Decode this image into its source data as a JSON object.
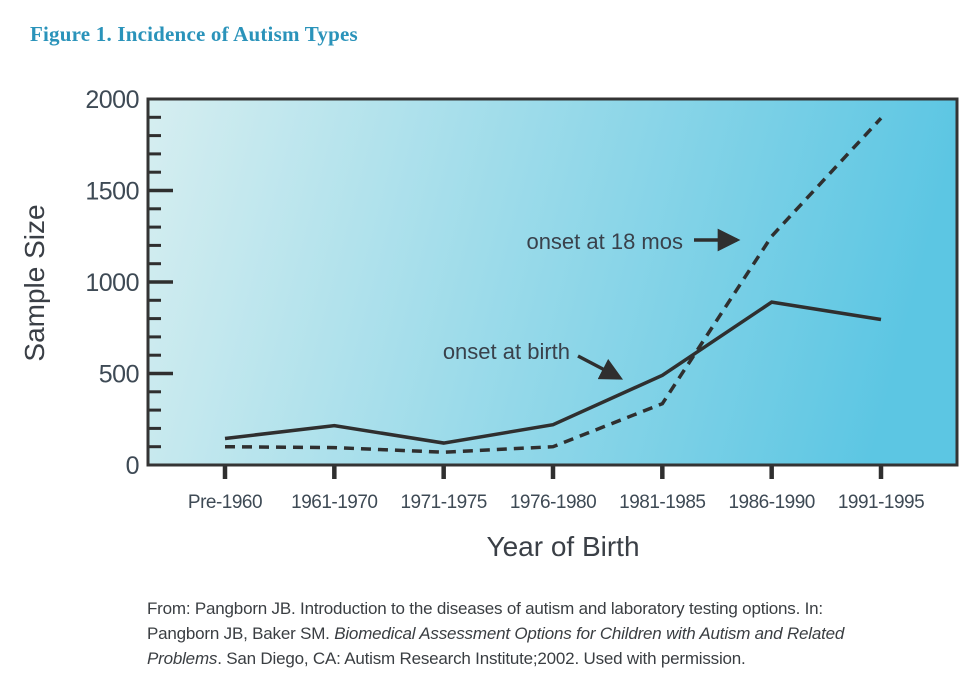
{
  "figure": {
    "title": "Figure 1. Incidence of Autism Types",
    "title_color": "#2a93ba"
  },
  "chart_data": {
    "type": "line",
    "title": "Figure 1. Incidence of Autism Types",
    "categories": [
      "Pre-1960",
      "1961-1970",
      "1971-1975",
      "1976-1980",
      "1981-1985",
      "1986-1990",
      "1991-1995"
    ],
    "series": [
      {
        "name": "onset at birth",
        "style": "solid",
        "values": [
          145,
          215,
          120,
          220,
          490,
          890,
          795
        ]
      },
      {
        "name": "onset at 18 mos",
        "style": "dashed",
        "values": [
          100,
          95,
          70,
          100,
          335,
          1250,
          1895
        ]
      }
    ],
    "xlabel": "Year of Birth",
    "ylabel": "Sample Size",
    "ylim": [
      0,
      2000
    ],
    "y_major_step": 500,
    "y_minor_step": 100,
    "y_tick_labels": [
      "0",
      "500",
      "1000",
      "1500",
      "2000"
    ],
    "grid": false,
    "legend": "inline-annotations",
    "annotations": [
      {
        "text": "onset at 18 mos",
        "target_series": "onset at 18 mos"
      },
      {
        "text": "onset at birth",
        "target_series": "onset at birth"
      }
    ],
    "plot_bg_gradient": [
      "#d6eef0",
      "#5cc6e3"
    ],
    "line_color": "#2f2f2f",
    "label_color": "#3e4a55",
    "axis_title_color": "#3a3f46"
  },
  "caption": {
    "part1": "From: Pangborn JB. Introduction to the diseases of autism and laboratory testing options. In: Pangborn JB, Baker SM. ",
    "italic": "Biomedical Assessment Options for Children with Autism and Related Problems",
    "part2": ". San Diego, CA: Autism Research Institute;2002. Used with permission."
  }
}
